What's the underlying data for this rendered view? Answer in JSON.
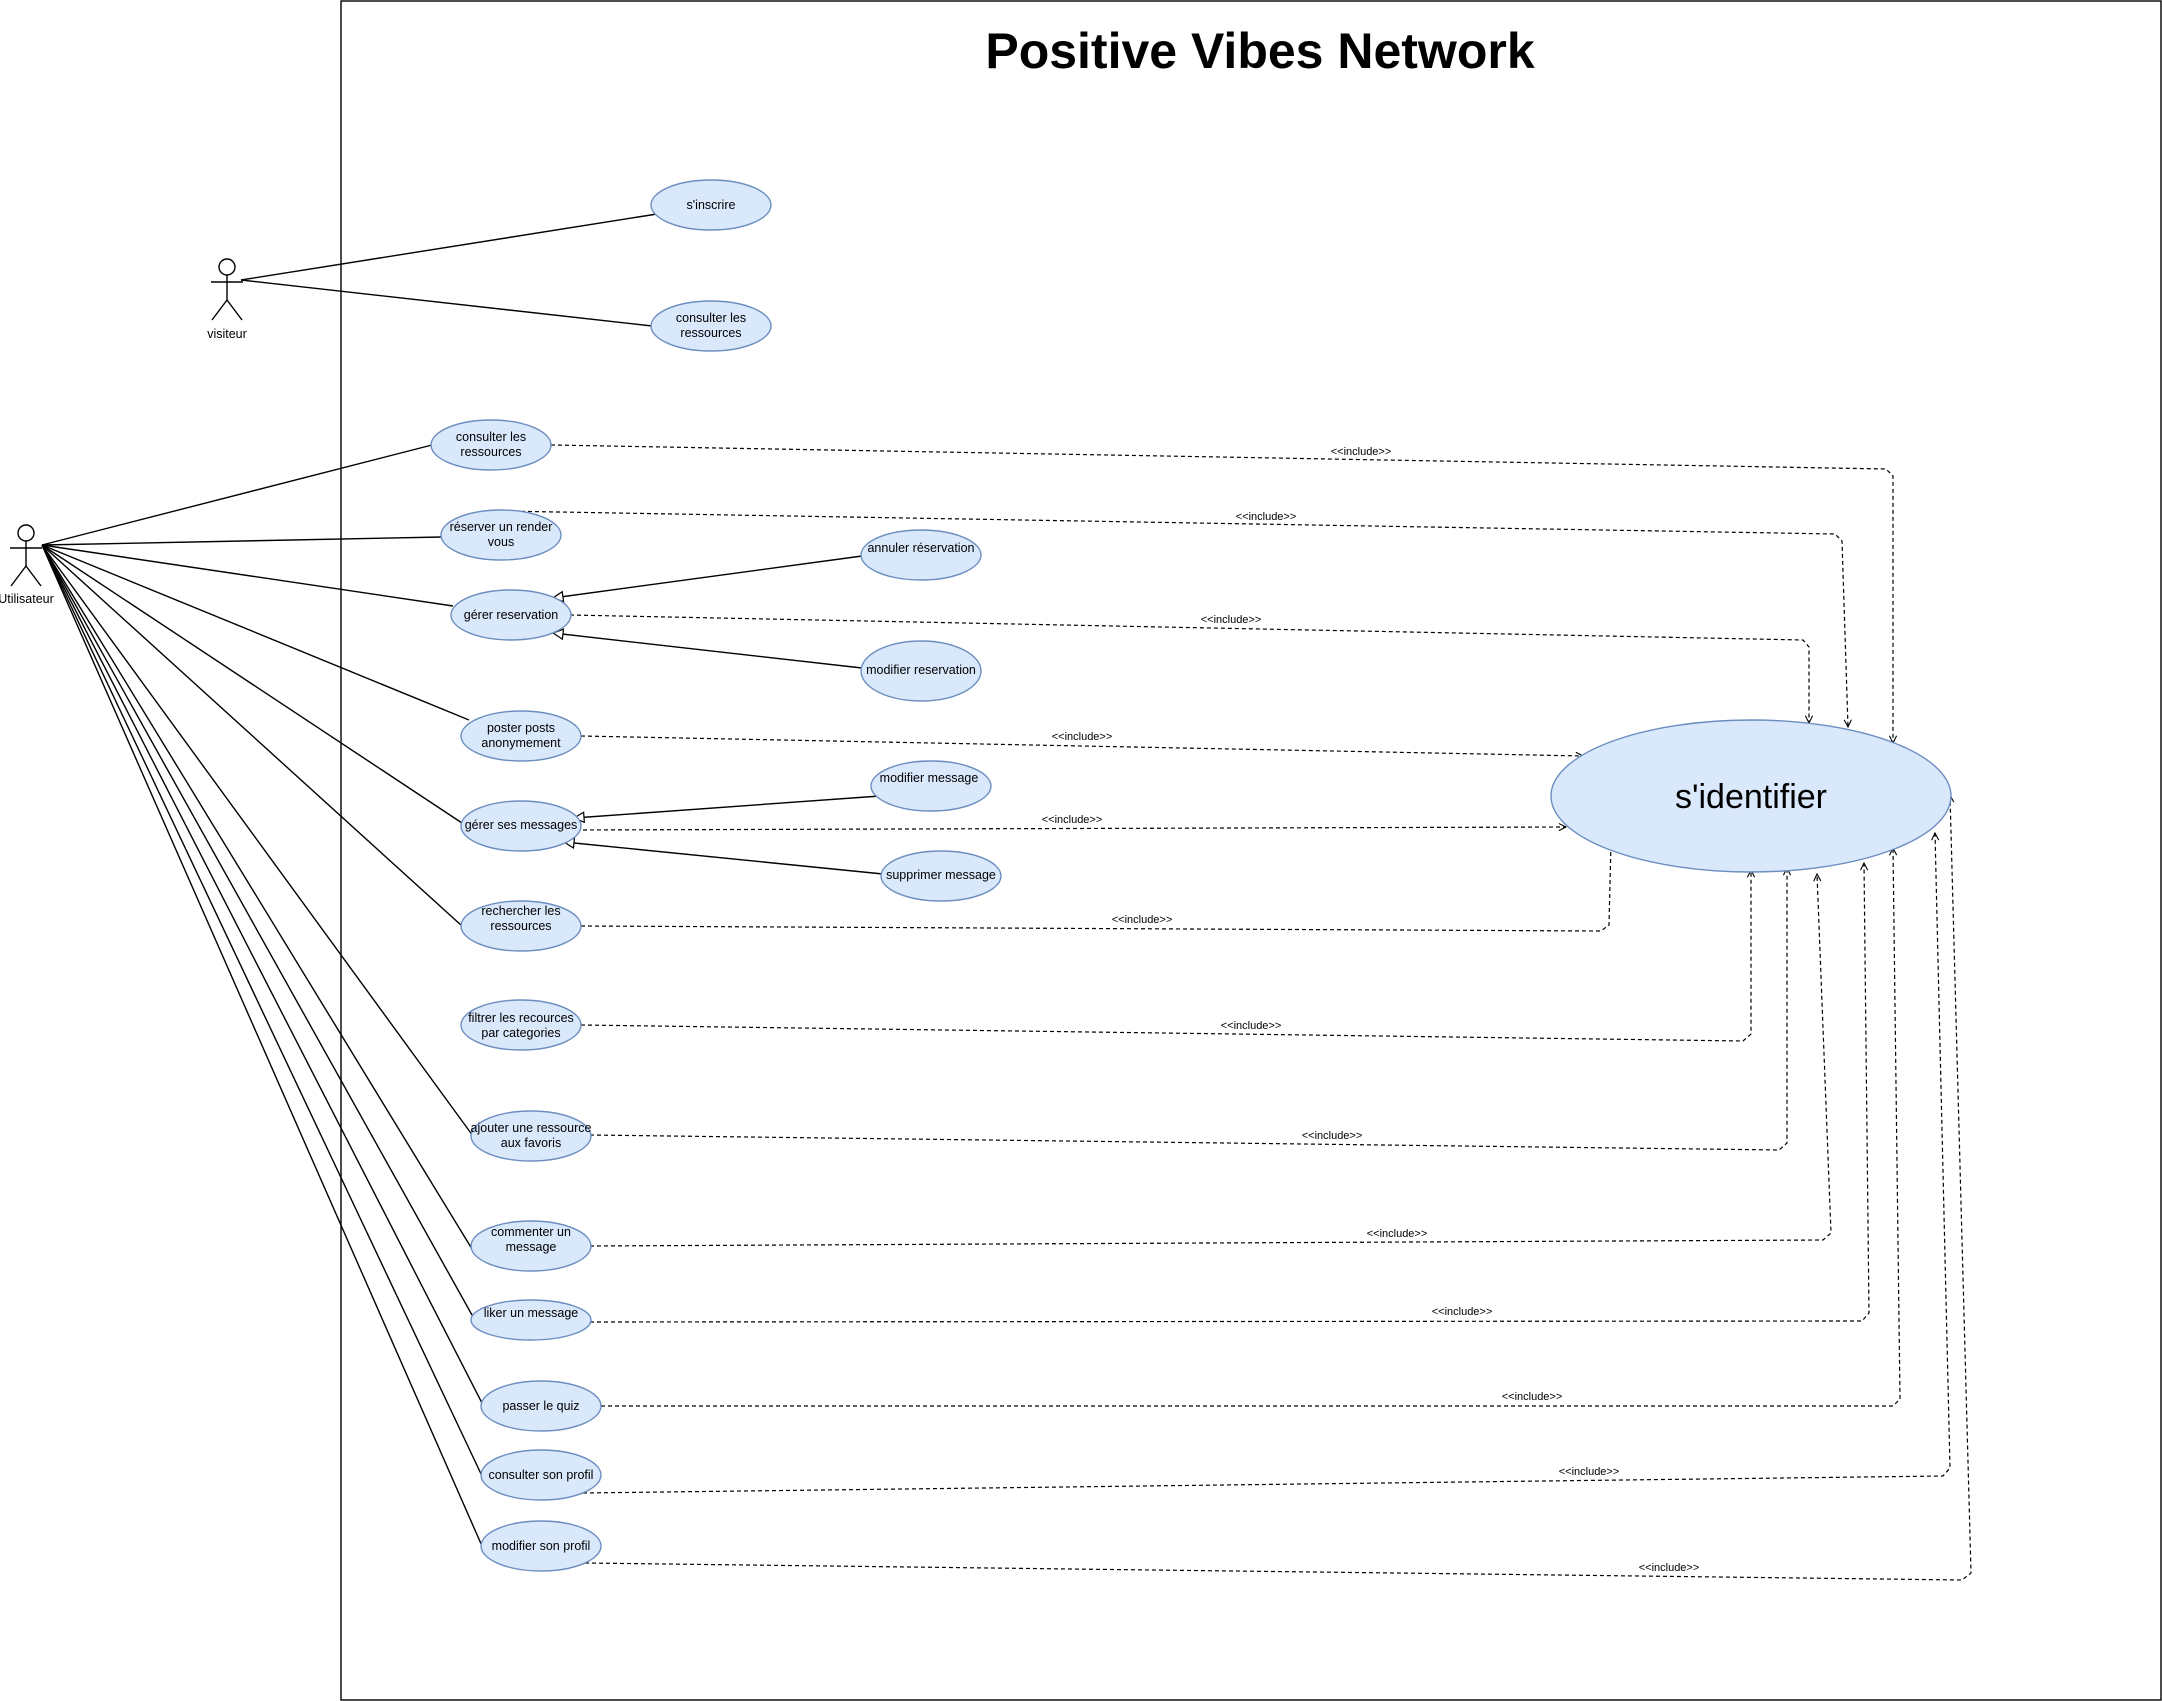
{
  "title": "Positive Vibes Network",
  "actors": [
    {
      "id": "visiteur",
      "label": "visiteur"
    },
    {
      "id": "utilisateur",
      "label": "Utilisateur"
    }
  ],
  "use_cases": [
    {
      "id": "sinscrire",
      "lines": [
        "s'inscrire"
      ]
    },
    {
      "id": "consulter_vis",
      "lines": [
        "consulter les",
        "ressources"
      ]
    },
    {
      "id": "consulter_res",
      "lines": [
        "consulter les",
        "ressources"
      ]
    },
    {
      "id": "reserver",
      "lines": [
        "réserver un render",
        "vous"
      ]
    },
    {
      "id": "gerer_res",
      "lines": [
        "gérer reservation"
      ]
    },
    {
      "id": "annuler_res",
      "lines": [
        "annuler réservation"
      ]
    },
    {
      "id": "modifier_res",
      "lines": [
        "modifier reservation"
      ]
    },
    {
      "id": "poster",
      "lines": [
        "poster posts",
        "anonymement"
      ]
    },
    {
      "id": "modifier_msg",
      "lines": [
        "modifier message"
      ]
    },
    {
      "id": "gerer_msg",
      "lines": [
        "gérer ses messages"
      ]
    },
    {
      "id": "supprimer_msg",
      "lines": [
        "supprimer message"
      ]
    },
    {
      "id": "rechercher",
      "lines": [
        "rechercher les",
        "ressources"
      ]
    },
    {
      "id": "filtrer",
      "lines": [
        "filtrer les recources",
        "par categories"
      ]
    },
    {
      "id": "favoris",
      "lines": [
        "ajouter une ressource",
        "aux favoris"
      ]
    },
    {
      "id": "commenter",
      "lines": [
        "commenter un",
        "message"
      ]
    },
    {
      "id": "liker",
      "lines": [
        "liker un message"
      ]
    },
    {
      "id": "quiz",
      "lines": [
        "passer le quiz"
      ]
    },
    {
      "id": "consulter_profil",
      "lines": [
        "consulter son profil"
      ]
    },
    {
      "id": "modifier_profil",
      "lines": [
        "modifier son profil"
      ]
    },
    {
      "id": "identifier",
      "lines": [
        "s'identifier"
      ]
    }
  ],
  "include_label": "<<include>>"
}
